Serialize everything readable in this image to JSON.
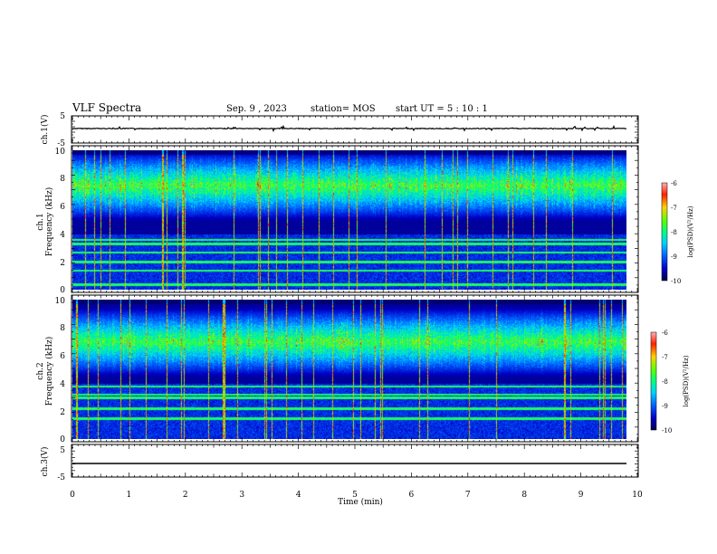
{
  "header": {
    "title": "VLF Spectra",
    "date": "Sep. 9  , 2023",
    "station": "station= MOS",
    "start": "start  UT =   5  : 10 : 1"
  },
  "chart_data": [
    {
      "type": "line",
      "name": "ch1-waveform",
      "ylabel": "ch.1(V)",
      "ylim": [
        -5,
        5
      ],
      "yticks": [
        "5",
        "-5"
      ],
      "xlim": [
        0,
        10
      ],
      "level": 0
    },
    {
      "type": "heatmap",
      "name": "ch1-spectrogram",
      "ylabel": "ch.1\nFrequency (kHz)",
      "ylabel_lines": [
        "ch.1",
        "Frequency (kHz)"
      ],
      "ylim": [
        0,
        10
      ],
      "yticks": [
        "0",
        "2",
        "4",
        "6",
        "8",
        "10"
      ],
      "xlim": [
        0,
        9.85
      ],
      "colorbar": {
        "label": "log(PSD)(V²/Hz)",
        "range": [
          -10,
          -6
        ],
        "ticks": [
          "-6",
          "-7",
          "-8",
          "-9",
          "-10"
        ]
      },
      "emission_band_khz": [
        5,
        10
      ],
      "persistent_lines_khz": [
        0.4,
        1.4,
        2.0,
        2.7,
        3.3,
        3.6
      ]
    },
    {
      "type": "heatmap",
      "name": "ch2-spectrogram",
      "ylabel": "ch.2\nFrequency (kHz)",
      "ylabel_lines": [
        "ch.2",
        "Frequency (kHz)"
      ],
      "ylim": [
        0,
        10
      ],
      "yticks": [
        "0",
        "2",
        "4",
        "6",
        "8",
        "10"
      ],
      "xlim": [
        0,
        9.85
      ],
      "colorbar": {
        "label": "log(PSD)(V²/Hz)",
        "range": [
          -10,
          -6
        ],
        "ticks": [
          "-6",
          "-7",
          "-8",
          "-9",
          "-10"
        ]
      },
      "emission_band_khz": [
        4.5,
        9.5
      ],
      "persistent_lines_khz": [
        1.5,
        2.2,
        3.0,
        3.2,
        3.8,
        4.4
      ]
    },
    {
      "type": "line",
      "name": "ch3-waveform",
      "ylabel": "ch.3(V)",
      "ylim": [
        -5,
        5
      ],
      "yticks": [
        "5",
        "-5"
      ],
      "xlim": [
        0,
        10
      ],
      "level": 0
    }
  ],
  "xaxis": {
    "label": "Time  (min)",
    "ticks": [
      "0",
      "1",
      "2",
      "3",
      "4",
      "5",
      "6",
      "7",
      "8",
      "9",
      "10"
    ],
    "range": [
      0,
      10
    ]
  },
  "colors": {
    "background": "#000080",
    "lines": "#000000"
  }
}
